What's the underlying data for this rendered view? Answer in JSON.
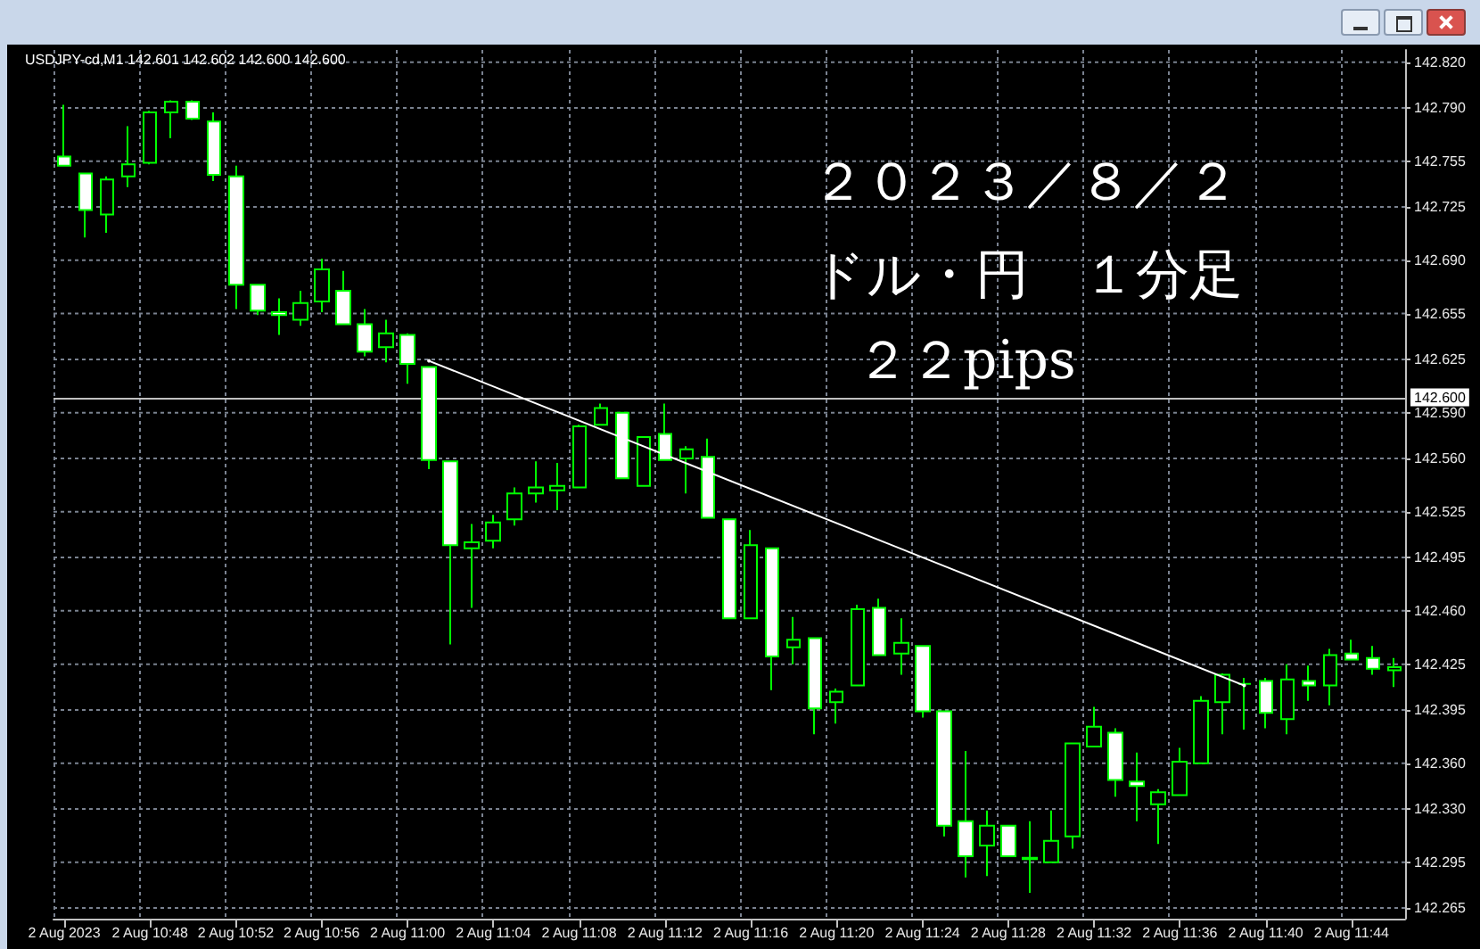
{
  "chart_data": {
    "type": "candlestick",
    "title": "USDJPY-cd,M1  142.601 142.602 142.600 142.600",
    "annotations": [
      "２０２３／８／２",
      "ドル・円　１分足",
      "２２pips"
    ],
    "categories": [
      "2 Aug 2023",
      null,
      null,
      null,
      "2 Aug 10:48",
      null,
      null,
      null,
      "2 Aug 10:52",
      null,
      null,
      null,
      "2 Aug 10:56",
      null,
      null,
      null,
      "2 Aug 11:00",
      null,
      null,
      null,
      "2 Aug 11:04",
      null,
      null,
      null,
      "2 Aug 11:08",
      null,
      null,
      null,
      "2 Aug 11:12",
      null,
      null,
      null,
      "2 Aug 11:16",
      null,
      null,
      null,
      "2 Aug 11:20",
      null,
      null,
      null,
      "2 Aug 11:24",
      null,
      null,
      null,
      "2 Aug 11:28",
      null,
      null,
      null,
      "2 Aug 11:32",
      null,
      null,
      null,
      "2 Aug 11:36",
      null,
      null,
      null,
      "2 Aug 11:40",
      null,
      null,
      null,
      "2 Aug 11:44",
      null,
      null
    ],
    "ohlc": [
      [
        142.758,
        142.792,
        142.752,
        142.752
      ],
      [
        142.747,
        142.747,
        142.705,
        142.723
      ],
      [
        142.72,
        142.745,
        142.708,
        142.743
      ],
      [
        142.745,
        142.778,
        142.738,
        142.753
      ],
      [
        142.754,
        142.788,
        142.753,
        142.787
      ],
      [
        142.787,
        142.795,
        142.77,
        142.794
      ],
      [
        142.794,
        142.795,
        142.782,
        142.783
      ],
      [
        142.781,
        142.787,
        142.742,
        142.746
      ],
      [
        142.745,
        142.752,
        142.658,
        142.674
      ],
      [
        142.674,
        142.674,
        142.654,
        142.657
      ],
      [
        142.656,
        142.665,
        142.641,
        142.654
      ],
      [
        142.651,
        142.67,
        142.647,
        142.662
      ],
      [
        142.663,
        142.691,
        142.656,
        142.684
      ],
      [
        142.67,
        142.683,
        142.648,
        142.648
      ],
      [
        142.648,
        142.658,
        142.627,
        142.63
      ],
      [
        142.633,
        142.651,
        142.623,
        142.642
      ],
      [
        142.641,
        142.642,
        142.609,
        142.622
      ],
      [
        142.62,
        142.62,
        142.553,
        142.559
      ],
      [
        142.558,
        142.558,
        142.438,
        142.503
      ],
      [
        142.501,
        142.517,
        142.462,
        142.505
      ],
      [
        142.506,
        142.523,
        142.501,
        142.518
      ],
      [
        142.52,
        142.541,
        142.516,
        142.537
      ],
      [
        142.537,
        142.558,
        142.531,
        142.541
      ],
      [
        142.539,
        142.557,
        142.526,
        142.542
      ],
      [
        142.541,
        142.582,
        142.541,
        142.581
      ],
      [
        142.582,
        142.596,
        142.582,
        142.593
      ],
      [
        142.59,
        142.59,
        142.547,
        142.547
      ],
      [
        142.542,
        142.574,
        142.542,
        142.574
      ],
      [
        142.576,
        142.596,
        142.559,
        142.559
      ],
      [
        142.56,
        142.568,
        142.537,
        142.566
      ],
      [
        142.561,
        142.573,
        142.521,
        142.521
      ],
      [
        142.52,
        142.52,
        142.455,
        142.455
      ],
      [
        142.455,
        142.513,
        142.455,
        142.503
      ],
      [
        142.501,
        142.501,
        142.408,
        142.43
      ],
      [
        142.436,
        142.456,
        142.425,
        142.441
      ],
      [
        142.442,
        142.442,
        142.379,
        142.396
      ],
      [
        142.4,
        142.409,
        142.386,
        142.407
      ],
      [
        142.411,
        142.464,
        142.411,
        142.461
      ],
      [
        142.462,
        142.468,
        142.431,
        142.431
      ],
      [
        142.432,
        142.455,
        142.418,
        142.439
      ],
      [
        142.437,
        142.437,
        142.39,
        142.394
      ],
      [
        142.394,
        142.394,
        142.312,
        142.319
      ],
      [
        142.322,
        142.368,
        142.285,
        142.299
      ],
      [
        142.306,
        142.329,
        142.286,
        142.319
      ],
      [
        142.319,
        142.319,
        142.299,
        142.299
      ],
      [
        142.297,
        142.322,
        142.275,
        142.298
      ],
      [
        142.295,
        142.329,
        142.295,
        142.309
      ],
      [
        142.312,
        142.373,
        142.304,
        142.373
      ],
      [
        142.371,
        142.397,
        142.371,
        142.384
      ],
      [
        142.38,
        142.383,
        142.338,
        142.349
      ],
      [
        142.348,
        142.367,
        142.322,
        142.345
      ],
      [
        142.333,
        142.343,
        142.307,
        142.341
      ],
      [
        142.339,
        142.37,
        142.339,
        142.361
      ],
      [
        142.36,
        142.404,
        142.36,
        142.401
      ],
      [
        142.4,
        142.419,
        142.379,
        142.418
      ],
      [
        142.412,
        142.416,
        142.382,
        142.412
      ],
      [
        142.414,
        142.416,
        142.383,
        142.393
      ],
      [
        142.389,
        142.425,
        142.379,
        142.415
      ],
      [
        142.414,
        142.424,
        142.401,
        142.411
      ],
      [
        142.411,
        142.435,
        142.398,
        142.431
      ],
      [
        142.432,
        142.441,
        142.428,
        142.428
      ],
      [
        142.429,
        142.437,
        142.418,
        142.422
      ],
      [
        142.421,
        142.429,
        142.41,
        142.423
      ]
    ],
    "color": "#00ff00",
    "series": [
      {
        "type": "line",
        "color": "#ffffff",
        "values": [
          null,
          null,
          null,
          null,
          null,
          null,
          null,
          null,
          null,
          null,
          null,
          null,
          null,
          null,
          null,
          null,
          null,
          142.624,
          null,
          null,
          null,
          null,
          null,
          null,
          null,
          null,
          null,
          null,
          null,
          null,
          null,
          null,
          null,
          null,
          null,
          null,
          null,
          null,
          null,
          null,
          null,
          null,
          null,
          null,
          null,
          null,
          null,
          null,
          null,
          null,
          null,
          null,
          null,
          null,
          null,
          142.411,
          null,
          null,
          null,
          null,
          null,
          null,
          null
        ]
      }
    ],
    "ylim": [
      142.258,
      142.828
    ],
    "yticks": [
      {
        "value": 142.82,
        "label": "142.820"
      },
      {
        "value": 142.79,
        "label": "142.790"
      },
      {
        "value": 142.755,
        "label": "142.755"
      },
      {
        "value": 142.725,
        "label": "142.725"
      },
      {
        "value": 142.69,
        "label": "142.690"
      },
      {
        "value": 142.655,
        "label": "142.655"
      },
      {
        "value": 142.625,
        "label": "142.625"
      },
      {
        "value": 142.59,
        "label": "142.590"
      },
      {
        "value": 142.56,
        "label": "142.560"
      },
      {
        "value": 142.525,
        "label": "142.525"
      },
      {
        "value": 142.495,
        "label": "142.495"
      },
      {
        "value": 142.46,
        "label": "142.460"
      },
      {
        "value": 142.425,
        "label": "142.425"
      },
      {
        "value": 142.395,
        "label": "142.395"
      },
      {
        "value": 142.36,
        "label": "142.360"
      },
      {
        "value": 142.33,
        "label": "142.330"
      },
      {
        "value": 142.295,
        "label": "142.295"
      },
      {
        "value": 142.265,
        "label": "142.265"
      }
    ],
    "ref_lines": [
      {
        "axis": "y",
        "value": 142.6,
        "label": "142.600",
        "color": "#c0c0c0"
      }
    ],
    "grid": true
  }
}
